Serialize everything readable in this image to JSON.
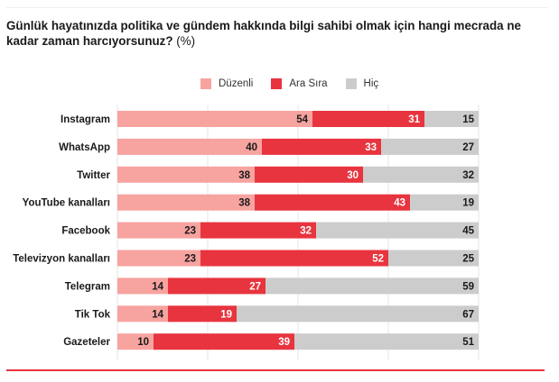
{
  "title": "Günlük hayatınızda politika ve gündem hakkında bilgi sahibi olmak için hangi mecrada ne kadar zaman harcıyorsunuz?",
  "title_unit": "(%)",
  "colors": {
    "duzenli": "#f7a3a0",
    "ara_sira": "#e8343f",
    "hic": "#cccccc",
    "rule": "#e8343f"
  },
  "chart_data": {
    "type": "bar",
    "orientation": "horizontal",
    "stacked": true,
    "categories": [
      "Instagram",
      "WhatsApp",
      "Twitter",
      "YouTube kanalları",
      "Facebook",
      "Televizyon kanalları",
      "Telegram",
      "Tik Tok",
      "Gazeteler"
    ],
    "series": [
      {
        "name": "Düzenli",
        "values": [
          54,
          40,
          38,
          38,
          23,
          23,
          14,
          14,
          10
        ]
      },
      {
        "name": "Ara Sıra",
        "values": [
          31,
          33,
          30,
          43,
          32,
          52,
          27,
          19,
          39
        ]
      },
      {
        "name": "Hiç",
        "values": [
          15,
          27,
          32,
          19,
          45,
          25,
          59,
          67,
          51
        ]
      }
    ],
    "xlim": [
      0,
      100
    ],
    "grid": true,
    "legend": "top-center"
  }
}
